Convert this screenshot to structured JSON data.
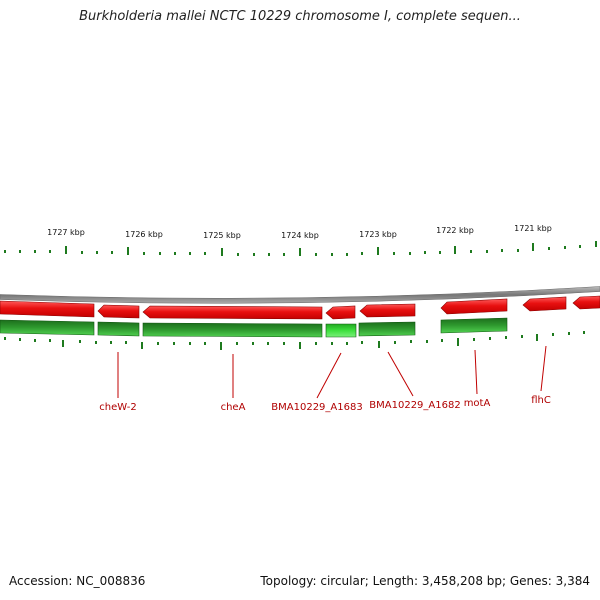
{
  "title": "Burkholderia mallei NCTC 10229 chromosome I, complete sequen...",
  "footer": {
    "accession": "Accession: NC_008836",
    "summary": "Topology: circular; Length: 3,458,208 bp; Genes: 3,384"
  },
  "scale_labels": [
    "1727 kbp",
    "1726 kbp",
    "1725 kbp",
    "1724 kbp",
    "1723 kbp",
    "1722 kbp",
    "1721 kbp"
  ],
  "gene_labels": [
    "cheW-2",
    "cheA",
    "BMA10229_A1683",
    "BMA10229_A1682",
    "motA",
    "flhC"
  ],
  "colors": {
    "forward_feature": "#e81010",
    "cds": "#22aa22",
    "cds_highlight": "#33dd33",
    "backbone": "#888888",
    "tick": "#1e7a1e",
    "label": "#b00000"
  }
}
